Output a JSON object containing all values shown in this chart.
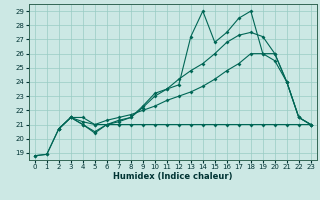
{
  "xlabel": "Humidex (Indice chaleur)",
  "bg_color": "#cce8e4",
  "grid_color": "#99ccc4",
  "line_color": "#006655",
  "xlim": [
    -0.5,
    23.5
  ],
  "ylim": [
    18.5,
    29.5
  ],
  "xticks": [
    0,
    1,
    2,
    3,
    4,
    5,
    6,
    7,
    8,
    9,
    10,
    11,
    12,
    13,
    14,
    15,
    16,
    17,
    18,
    19,
    20,
    21,
    22,
    23
  ],
  "yticks": [
    19,
    20,
    21,
    22,
    23,
    24,
    25,
    26,
    27,
    28,
    29
  ],
  "series": [
    {
      "x": [
        0,
        1,
        2,
        3,
        4,
        5,
        6,
        7,
        8,
        9,
        10,
        11,
        12,
        13,
        14,
        15,
        16,
        17,
        18,
        19,
        20,
        21,
        22,
        23
      ],
      "y": [
        18.8,
        18.9,
        20.7,
        21.5,
        21.5,
        21.0,
        21.0,
        21.0,
        21.0,
        21.0,
        21.0,
        21.0,
        21.0,
        21.0,
        21.0,
        21.0,
        21.0,
        21.0,
        21.0,
        21.0,
        21.0,
        21.0,
        21.0,
        21.0
      ]
    },
    {
      "x": [
        2,
        3,
        4,
        5,
        6,
        7,
        8,
        9,
        10,
        11,
        12,
        13,
        14,
        15,
        16,
        17,
        18,
        19,
        20,
        21,
        22,
        23
      ],
      "y": [
        20.7,
        21.5,
        21.2,
        21.0,
        21.3,
        21.5,
        21.7,
        22.0,
        22.3,
        22.7,
        23.0,
        23.3,
        23.7,
        24.2,
        24.8,
        25.3,
        26.0,
        26.0,
        25.5,
        24.0,
        21.5,
        21.0
      ]
    },
    {
      "x": [
        2,
        3,
        4,
        5,
        6,
        7,
        8,
        9,
        10,
        11,
        12,
        13,
        14,
        15,
        16,
        17,
        18,
        19,
        20,
        21,
        22,
        23
      ],
      "y": [
        20.7,
        21.5,
        21.0,
        20.5,
        21.0,
        21.2,
        21.5,
        22.2,
        23.0,
        23.5,
        24.2,
        24.8,
        25.3,
        26.0,
        26.8,
        27.3,
        27.5,
        27.2,
        26.0,
        24.0,
        21.5,
        21.0
      ]
    },
    {
      "comment": "peaky line - peaks at x=14 ~29, x=17 ~28.5, x=18 ~29",
      "x": [
        0,
        1,
        2,
        3,
        4,
        5,
        6,
        7,
        8,
        9,
        10,
        11,
        12,
        13,
        14,
        15,
        16,
        17,
        18,
        19,
        20,
        21,
        22,
        23
      ],
      "y": [
        18.8,
        18.9,
        20.7,
        21.5,
        21.0,
        20.4,
        21.0,
        21.3,
        21.5,
        22.3,
        23.2,
        23.5,
        23.8,
        27.2,
        29.0,
        26.8,
        27.5,
        28.5,
        29.0,
        26.0,
        26.0,
        24.0,
        21.5,
        21.0
      ]
    }
  ]
}
